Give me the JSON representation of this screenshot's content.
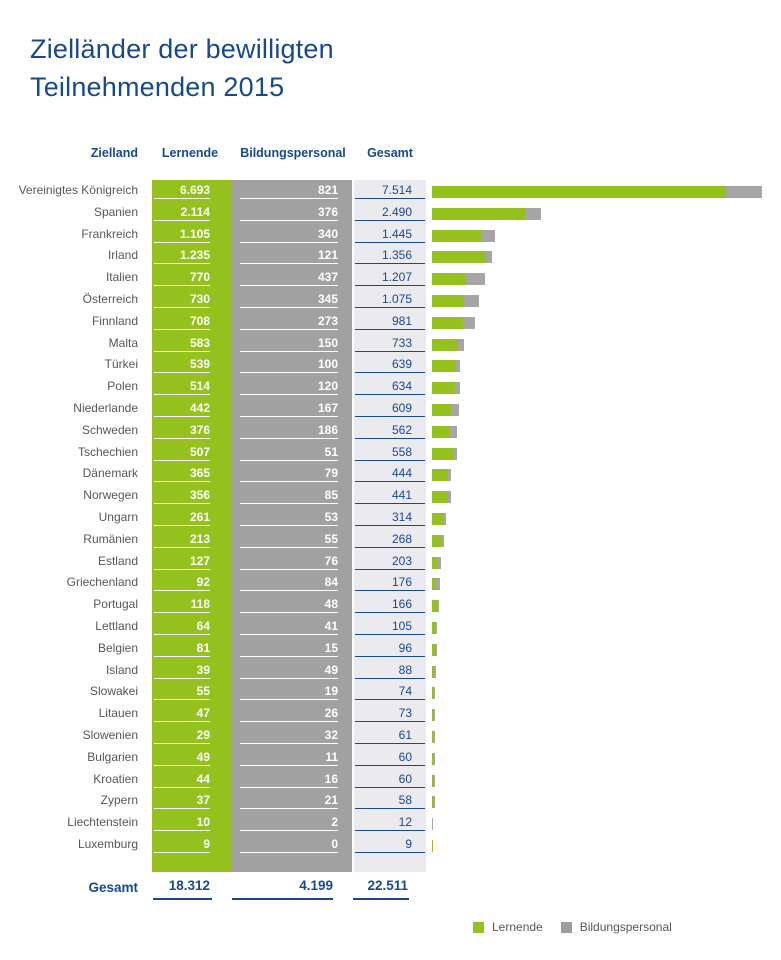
{
  "title": {
    "line1": "Zielländer der bewilligten",
    "line2": "Teilnehmenden 2015"
  },
  "table": {
    "headers": {
      "zielland": "Zielland",
      "lernende": "Lernende",
      "bildungspersonal": "Bildungspersonal",
      "gesamt": "Gesamt"
    },
    "rows": [
      {
        "country": "Vereinigtes Königreich",
        "lernende": "6.693",
        "bildungspersonal": "821",
        "gesamt": "7.514"
      },
      {
        "country": "Spanien",
        "lernende": "2.114",
        "bildungspersonal": "376",
        "gesamt": "2.490"
      },
      {
        "country": "Frankreich",
        "lernende": "1.105",
        "bildungspersonal": "340",
        "gesamt": "1.445"
      },
      {
        "country": "Irland",
        "lernende": "1.235",
        "bildungspersonal": "121",
        "gesamt": "1.356"
      },
      {
        "country": "Italien",
        "lernende": "770",
        "bildungspersonal": "437",
        "gesamt": "1.207"
      },
      {
        "country": "Österreich",
        "lernende": "730",
        "bildungspersonal": "345",
        "gesamt": "1.075"
      },
      {
        "country": "Finnland",
        "lernende": "708",
        "bildungspersonal": "273",
        "gesamt": "981"
      },
      {
        "country": "Malta",
        "lernende": "583",
        "bildungspersonal": "150",
        "gesamt": "733"
      },
      {
        "country": "Türkei",
        "lernende": "539",
        "bildungspersonal": "100",
        "gesamt": "639"
      },
      {
        "country": "Polen",
        "lernende": "514",
        "bildungspersonal": "120",
        "gesamt": "634"
      },
      {
        "country": "Niederlande",
        "lernende": "442",
        "bildungspersonal": "167",
        "gesamt": "609"
      },
      {
        "country": "Schweden",
        "lernende": "376",
        "bildungspersonal": "186",
        "gesamt": "562"
      },
      {
        "country": "Tschechien",
        "lernende": "507",
        "bildungspersonal": "51",
        "gesamt": "558"
      },
      {
        "country": "Dänemark",
        "lernende": "365",
        "bildungspersonal": "79",
        "gesamt": "444"
      },
      {
        "country": "Norwegen",
        "lernende": "356",
        "bildungspersonal": "85",
        "gesamt": "441"
      },
      {
        "country": "Ungarn",
        "lernende": "261",
        "bildungspersonal": "53",
        "gesamt": "314"
      },
      {
        "country": "Rumänien",
        "lernende": "213",
        "bildungspersonal": "55",
        "gesamt": "268"
      },
      {
        "country": "Estland",
        "lernende": "127",
        "bildungspersonal": "76",
        "gesamt": "203"
      },
      {
        "country": "Griechenland",
        "lernende": "92",
        "bildungspersonal": "84",
        "gesamt": "176"
      },
      {
        "country": "Portugal",
        "lernende": "118",
        "bildungspersonal": "48",
        "gesamt": "166"
      },
      {
        "country": "Lettland",
        "lernende": "64",
        "bildungspersonal": "41",
        "gesamt": "105"
      },
      {
        "country": "Belgien",
        "lernende": "81",
        "bildungspersonal": "15",
        "gesamt": "96"
      },
      {
        "country": "Island",
        "lernende": "39",
        "bildungspersonal": "49",
        "gesamt": "88"
      },
      {
        "country": "Slowakei",
        "lernende": "55",
        "bildungspersonal": "19",
        "gesamt": "74"
      },
      {
        "country": "Litauen",
        "lernende": "47",
        "bildungspersonal": "26",
        "gesamt": "73"
      },
      {
        "country": "Slowenien",
        "lernende": "29",
        "bildungspersonal": "32",
        "gesamt": "61"
      },
      {
        "country": "Bulgarien",
        "lernende": "49",
        "bildungspersonal": "11",
        "gesamt": "60"
      },
      {
        "country": "Kroatien",
        "lernende": "44",
        "bildungspersonal": "16",
        "gesamt": "60"
      },
      {
        "country": "Zypern",
        "lernende": "37",
        "bildungspersonal": "21",
        "gesamt": "58"
      },
      {
        "country": "Liechtenstein",
        "lernende": "10",
        "bildungspersonal": "2",
        "gesamt": "12"
      },
      {
        "country": "Luxemburg",
        "lernende": "9",
        "bildungspersonal": "0",
        "gesamt": "9"
      }
    ],
    "total": {
      "label": "Gesamt",
      "lernende": "18.312",
      "bildungspersonal": "4.199",
      "gesamt": "22.511"
    }
  },
  "legend": [
    {
      "label": "Lernende",
      "color": "#95c11f"
    },
    {
      "label": "Bildungspersonal",
      "color": "#9d9d9c"
    }
  ],
  "colors": {
    "title_blue": "#17498c",
    "green": "#95c11f",
    "column_gray": "#a1a1a1",
    "bar_gray": "#a6a6a6",
    "light_column": "#eaeaef",
    "label_gray": "#575756"
  },
  "chart_data": {
    "type": "bar",
    "orientation": "horizontal",
    "stacked": true,
    "title": "Zielländer der bewilligten Teilnehmenden 2015",
    "categories": [
      "Vereinigtes Königreich",
      "Spanien",
      "Frankreich",
      "Irland",
      "Italien",
      "Österreich",
      "Finnland",
      "Malta",
      "Türkei",
      "Polen",
      "Niederlande",
      "Schweden",
      "Tschechien",
      "Dänemark",
      "Norwegen",
      "Ungarn",
      "Rumänien",
      "Estland",
      "Griechenland",
      "Portugal",
      "Lettland",
      "Belgien",
      "Island",
      "Slowakei",
      "Litauen",
      "Slowenien",
      "Bulgarien",
      "Kroatien",
      "Zypern",
      "Liechtenstein",
      "Luxemburg"
    ],
    "series": [
      {
        "name": "Lernende",
        "color": "#95c11f",
        "values": [
          6693,
          2114,
          1105,
          1235,
          770,
          730,
          708,
          583,
          539,
          514,
          442,
          376,
          507,
          365,
          356,
          261,
          213,
          127,
          92,
          118,
          64,
          81,
          39,
          55,
          47,
          29,
          49,
          44,
          37,
          10,
          9
        ]
      },
      {
        "name": "Bildungspersonal",
        "color": "#a6a6a6",
        "values": [
          821,
          376,
          340,
          121,
          437,
          345,
          273,
          150,
          100,
          120,
          167,
          186,
          51,
          79,
          85,
          53,
          55,
          76,
          84,
          48,
          41,
          15,
          49,
          19,
          26,
          32,
          11,
          16,
          21,
          2,
          0
        ]
      }
    ],
    "totals": [
      7514,
      2490,
      1445,
      1356,
      1207,
      1075,
      981,
      733,
      639,
      634,
      609,
      562,
      558,
      444,
      441,
      314,
      268,
      203,
      176,
      166,
      105,
      96,
      88,
      74,
      73,
      61,
      60,
      60,
      58,
      12,
      9
    ],
    "grand_total": {
      "lernende": 18312,
      "bildungspersonal": 4199,
      "gesamt": 22511
    },
    "xlim": [
      0,
      7514
    ],
    "grid": false,
    "legend_position": "bottom-right"
  }
}
